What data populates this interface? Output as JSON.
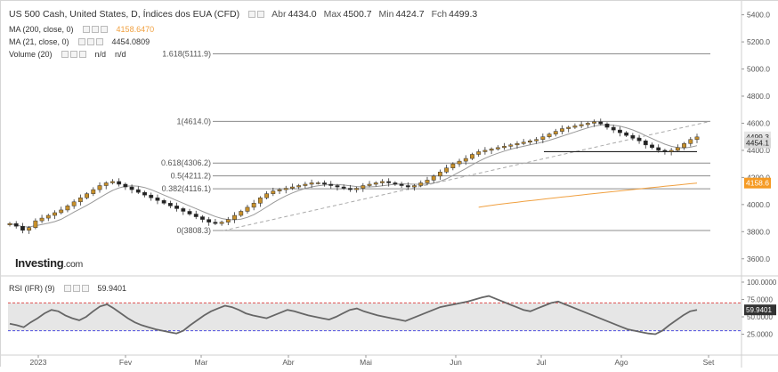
{
  "header": {
    "symbol_title": "US 500 Cash, United States, D, Índices dos EUA (CFD)",
    "ohlc": [
      {
        "label": "Abr",
        "value": "4434.0"
      },
      {
        "label": "Max",
        "value": "4500.7"
      },
      {
        "label": "Min",
        "value": "4424.7"
      },
      {
        "label": "Fch",
        "value": "4499.3"
      }
    ]
  },
  "indicators": {
    "ma200": {
      "label": "MA (200, close, 0)",
      "value": "4158.6470",
      "color": "#f0a040"
    },
    "ma21": {
      "label": "MA (21, close, 0)",
      "value": "4454.0809",
      "color": "#999999"
    },
    "volume": {
      "label": "Volume (20)",
      "value1": "n/d",
      "value2": "n/d"
    }
  },
  "logo": {
    "brand": "Investing",
    "suffix": ".com"
  },
  "fibonacci": [
    {
      "label": "1.618(5111.9)",
      "price": 5111.9
    },
    {
      "label": "1(4614.0)",
      "price": 4614.0
    },
    {
      "label": "0.618(4306.2)",
      "price": 4306.2
    },
    {
      "label": "0.5(4211.2)",
      "price": 4211.2
    },
    {
      "label": "0.382(4116.1)",
      "price": 4116.1
    },
    {
      "label": "0(3808.3)",
      "price": 3808.3
    }
  ],
  "price_badges": [
    {
      "label": "4499.3",
      "price": 4499.3,
      "bg": "#e6e6e6",
      "fg": "#222222"
    },
    {
      "label": "4454.1",
      "price": 4454.1,
      "bg": "#d9d9d9",
      "fg": "#222222"
    },
    {
      "label": "4158.6",
      "price": 4158.6,
      "bg": "#f59a23",
      "fg": "#ffffff"
    }
  ],
  "rsi": {
    "label": "RSI (IFR) (9)",
    "value": "59.9401",
    "overbought": 70,
    "oversold": 30,
    "axis_ticks": [
      "100.0000",
      "75.0000",
      "50.0000",
      "25.0000"
    ]
  },
  "chart_data": {
    "type": "candlestick",
    "series": [
      {
        "name": "US 500 Cash",
        "kind": "candlestick",
        "color_up": "#c8902a",
        "color_down": "#222222"
      },
      {
        "name": "MA (200, close, 0)",
        "kind": "line",
        "color": "#f0a040"
      },
      {
        "name": "MA (21, close, 0)",
        "kind": "line",
        "color": "#999999"
      }
    ],
    "y_axis_ticks": [
      5400,
      5200,
      5000,
      4800,
      4600,
      4400,
      4200,
      4000,
      3800,
      3600
    ],
    "y_axis_labels": [
      "5400.0",
      "5200.0",
      "5000.0",
      "4800.0",
      "4600.0",
      "4400.0",
      "4200.0",
      "4000.0",
      "3800.0",
      "3600.0"
    ],
    "ylim": [
      3500,
      5450
    ],
    "x_axis_labels": [
      "2023",
      "Fev",
      "Mar",
      "Abr",
      "Mai",
      "Jun",
      "Jul",
      "Ago",
      "Set"
    ],
    "support_line_price": 4390,
    "trendline": {
      "start_price": 3808,
      "end_price": 4614
    },
    "close_profile": [
      3860,
      3840,
      3810,
      3830,
      3880,
      3900,
      3920,
      3940,
      3960,
      3990,
      4020,
      4050,
      4080,
      4110,
      4140,
      4160,
      4170,
      4150,
      4130,
      4110,
      4090,
      4070,
      4050,
      4030,
      4010,
      3990,
      3970,
      3950,
      3930,
      3910,
      3890,
      3870,
      3860,
      3870,
      3890,
      3920,
      3950,
      3980,
      4010,
      4050,
      4080,
      4100,
      4110,
      4120,
      4130,
      4140,
      4150,
      4160,
      4160,
      4150,
      4140,
      4130,
      4120,
      4110,
      4120,
      4140,
      4150,
      4160,
      4170,
      4160,
      4150,
      4140,
      4130,
      4140,
      4160,
      4180,
      4210,
      4240,
      4270,
      4300,
      4320,
      4340,
      4370,
      4390,
      4400,
      4410,
      4420,
      4430,
      4440,
      4450,
      4460,
      4470,
      4480,
      4500,
      4520,
      4540,
      4560,
      4570,
      4580,
      4590,
      4600,
      4610,
      4595,
      4570,
      4550,
      4530,
      4510,
      4490,
      4470,
      4440,
      4420,
      4400,
      4390,
      4400,
      4420,
      4450,
      4480,
      4499
    ],
    "rsi_profile": [
      40,
      38,
      35,
      42,
      48,
      55,
      60,
      58,
      52,
      48,
      45,
      50,
      58,
      65,
      68,
      62,
      55,
      48,
      42,
      38,
      35,
      32,
      30,
      28,
      26,
      30,
      38,
      45,
      52,
      58,
      62,
      66,
      64,
      60,
      55,
      52,
      50,
      48,
      52,
      56,
      60,
      58,
      55,
      52,
      50,
      48,
      46,
      50,
      55,
      60,
      62,
      58,
      55,
      52,
      50,
      48,
      46,
      44,
      48,
      52,
      56,
      60,
      64,
      66,
      68,
      70,
      72,
      75,
      78,
      80,
      76,
      72,
      68,
      64,
      60,
      58,
      62,
      66,
      70,
      72,
      68,
      64,
      60,
      56,
      52,
      48,
      44,
      40,
      36,
      32,
      30,
      28,
      26,
      25,
      30,
      38,
      45,
      52,
      58,
      60
    ]
  }
}
